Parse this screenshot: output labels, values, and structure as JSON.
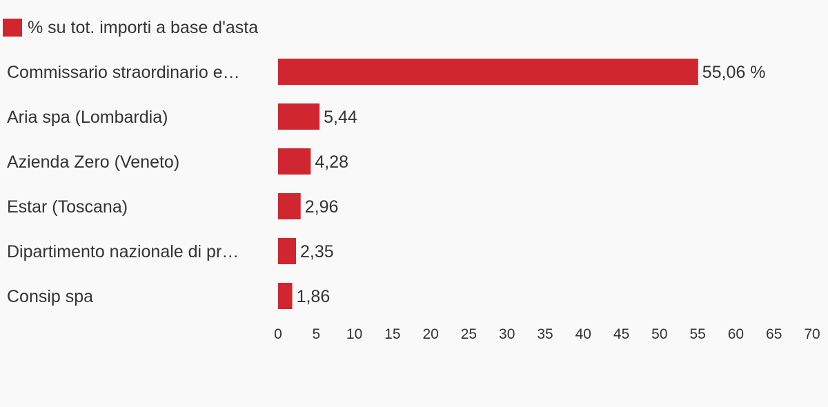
{
  "colors": {
    "background": "#f9f9f9",
    "bar": "#d0262f",
    "text": "#333333"
  },
  "chart_data": {
    "type": "bar",
    "orientation": "horizontal",
    "categories": [
      "Commissario straordinario e…",
      "Aria spa (Lombardia)",
      "Azienda Zero (Veneto)",
      "Estar (Toscana)",
      "Dipartimento nazionale di pr…",
      "Consip spa"
    ],
    "series": [
      {
        "name": "% su tot. importi a base d'asta",
        "values": [
          55.06,
          5.44,
          4.28,
          2.96,
          2.35,
          1.86
        ],
        "value_labels": [
          "55,06 %",
          "5,44",
          "4,28",
          "2,96",
          "2,35",
          "1,86"
        ]
      }
    ],
    "xlim": [
      0,
      70
    ],
    "x_ticks": [
      0,
      5,
      10,
      15,
      20,
      25,
      30,
      35,
      40,
      45,
      50,
      55,
      60,
      65,
      70
    ],
    "grid": false,
    "legend_position": "top-left",
    "title": "",
    "xlabel": "",
    "ylabel": ""
  }
}
